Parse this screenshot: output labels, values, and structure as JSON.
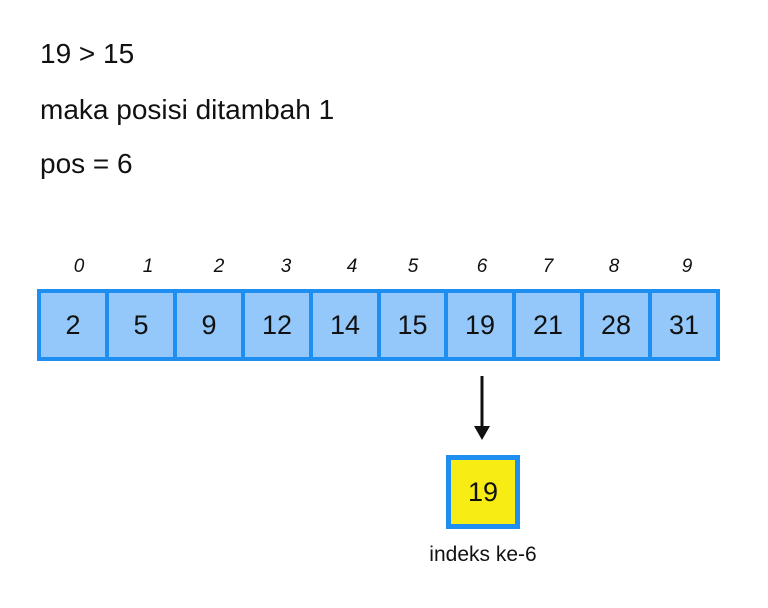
{
  "text": {
    "comparison": "19 > 15",
    "message": "maka posisi ditambah 1",
    "position": "pos = 6"
  },
  "array": {
    "indices": [
      "0",
      "1",
      "2",
      "3",
      "4",
      "5",
      "6",
      "7",
      "8",
      "9"
    ],
    "values": [
      "2",
      "5",
      "9",
      "12",
      "14",
      "15",
      "19",
      "21",
      "28",
      "31"
    ]
  },
  "result": {
    "value": "19",
    "caption": "indeks ke-6"
  },
  "colors": {
    "border_blue": "#1f8ef1",
    "cell_blue": "#94c8fa",
    "highlight_yellow": "#f7ec13"
  },
  "icons": {
    "arrow": "arrow-down-icon"
  }
}
